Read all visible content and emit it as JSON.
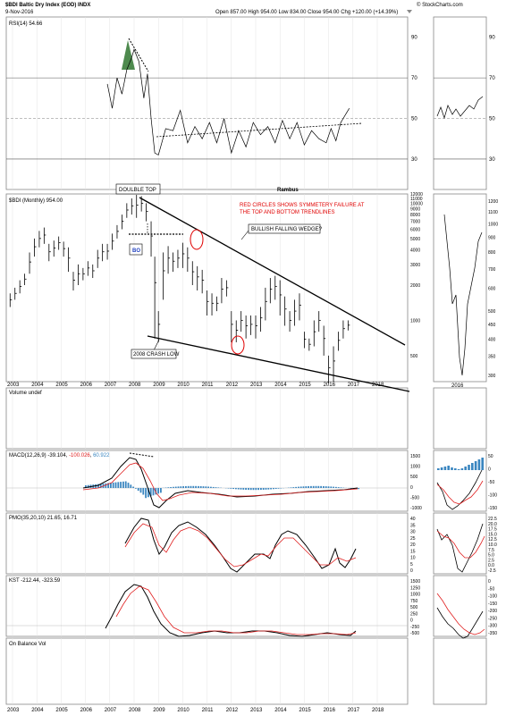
{
  "header": {
    "symbol": "$BDI",
    "name": "Baltic Dry Index (EOD)",
    "exchange": "INDX",
    "date": "9-Nov-2016",
    "brand": "© StockCharts.com",
    "quote": {
      "open_label": "Open",
      "open": "857.00",
      "high_label": "High",
      "high": "954.00",
      "low_label": "Low",
      "low": "834.00",
      "close_label": "Close",
      "close": "954.00",
      "chg_label": "Chg",
      "chg": "+120.00 (+14.39%)"
    }
  },
  "chart_data": [
    {
      "type": "line",
      "panel": "rsi",
      "legend": "RSI(14) 54.66",
      "ylim": [
        15,
        100
      ],
      "yticks": [
        30,
        50,
        70,
        90
      ],
      "reference_lines": [
        30,
        50,
        70
      ],
      "series": [
        {
          "x": [
            2006.9,
            2007.1,
            2007.3,
            2007.5,
            2007.7,
            2007.9,
            2008.0,
            2008.2,
            2008.4,
            2008.55,
            2008.7,
            2008.85,
            2009.0,
            2009.3,
            2009.6,
            2009.9,
            2010.2,
            2010.5,
            2010.8,
            2011.1,
            2011.4,
            2011.7,
            2012.0,
            2012.3,
            2012.6,
            2012.9,
            2013.2,
            2013.5,
            2013.8,
            2014.1,
            2014.4,
            2014.7,
            2015.0,
            2015.3,
            2015.6,
            2015.9,
            2016.1,
            2016.3,
            2016.5,
            2016.7,
            2016.85
          ],
          "y": [
            67,
            55,
            70,
            62,
            74,
            80,
            84,
            78,
            60,
            72,
            50,
            33,
            32,
            45,
            44,
            54,
            38,
            46,
            40,
            48,
            38,
            50,
            33,
            44,
            36,
            48,
            42,
            46,
            38,
            49,
            40,
            48,
            37,
            44,
            40,
            38,
            45,
            39,
            48,
            52,
            55
          ]
        }
      ],
      "annotations": [
        "dashed falling line on RSI peaks 2008",
        "dashed rising support line 2009–2016",
        "green shaded overbought area 2008"
      ]
    },
    {
      "type": "bar",
      "panel": "price",
      "legend": "$BDI (Monthly) 954.00",
      "scale": "log",
      "ylim": [
        300,
        12000
      ],
      "yticks": [
        300,
        400,
        500,
        600,
        700,
        800,
        900,
        1000,
        2000,
        3000,
        4000,
        5000,
        6000,
        7000,
        8000,
        9000,
        10000,
        11000,
        12000
      ],
      "ytick_labels": [
        "500",
        "1000",
        "2000",
        "3000",
        "4000",
        "5000",
        "6000",
        "7000",
        "8000",
        "9000",
        "10000",
        "11000",
        "12000"
      ],
      "x": [
        2002.9,
        2003.1,
        2003.3,
        2003.5,
        2003.7,
        2003.9,
        2004.1,
        2004.3,
        2004.5,
        2004.7,
        2004.9,
        2005.1,
        2005.3,
        2005.5,
        2005.7,
        2005.9,
        2006.1,
        2006.3,
        2006.5,
        2006.7,
        2006.9,
        2007.1,
        2007.3,
        2007.5,
        2007.7,
        2007.9,
        2008.1,
        2008.3,
        2008.5,
        2008.7,
        2008.85,
        2009.0,
        2009.2,
        2009.4,
        2009.6,
        2009.8,
        2010.0,
        2010.2,
        2010.4,
        2010.6,
        2010.8,
        2011.0,
        2011.2,
        2011.4,
        2011.6,
        2011.8,
        2012.0,
        2012.2,
        2012.4,
        2012.6,
        2012.8,
        2013.0,
        2013.2,
        2013.4,
        2013.6,
        2013.8,
        2014.0,
        2014.2,
        2014.4,
        2014.6,
        2014.8,
        2015.0,
        2015.2,
        2015.4,
        2015.6,
        2015.8,
        2016.0,
        2016.2,
        2016.4,
        2016.6,
        2016.8
      ],
      "high": [
        1700,
        1900,
        2200,
        2500,
        3800,
        5000,
        5800,
        6200,
        4500,
        4800,
        5200,
        4700,
        4200,
        2600,
        3000,
        2800,
        3200,
        3000,
        4000,
        4500,
        4500,
        5500,
        6500,
        8000,
        10000,
        11000,
        11800,
        11500,
        10000,
        7000,
        3500,
        1200,
        3800,
        4300,
        3800,
        4000,
        4600,
        4200,
        3200,
        2900,
        2700,
        1800,
        1700,
        1600,
        2300,
        2200,
        1200,
        1000,
        1200,
        1100,
        1100,
        1100,
        1300,
        1900,
        2300,
        2400,
        2200,
        1600,
        1200,
        1500,
        1700,
        800,
        700,
        1000,
        1200,
        900,
        500,
        600,
        800,
        1000,
        1000
      ],
      "low": [
        1300,
        1500,
        1700,
        2000,
        2500,
        3500,
        4200,
        4500,
        3200,
        3500,
        4000,
        3500,
        2600,
        1800,
        2000,
        2200,
        2400,
        2300,
        2800,
        3200,
        3300,
        4000,
        5000,
        6000,
        7500,
        8000,
        7500,
        8500,
        7000,
        3500,
        700,
        650,
        1500,
        2500,
        2600,
        2800,
        2800,
        2600,
        2000,
        1800,
        1700,
        1100,
        1100,
        1200,
        1400,
        1600,
        650,
        650,
        800,
        700,
        750,
        700,
        800,
        1000,
        1400,
        1500,
        1100,
        900,
        800,
        900,
        1000,
        580,
        550,
        600,
        800,
        500,
        290,
        300,
        550,
        700,
        820
      ]
    },
    {
      "type": "line",
      "panel": "price-inset",
      "x_label": "2016",
      "yticks": [
        300,
        350,
        400,
        450,
        500,
        600,
        700,
        800,
        900,
        1000,
        1100,
        1200
      ],
      "ytick_labels": [
        "300",
        "350",
        "400",
        "450",
        "500",
        "600",
        "700",
        "800",
        "900",
        "1000",
        "1100",
        "1200"
      ]
    },
    {
      "type": "bar",
      "panel": "volume",
      "legend": "Volume undef"
    },
    {
      "type": "bar",
      "panel": "macd",
      "legend": "MACD(12,26,9)",
      "legend_vals": [
        "-39.104",
        "-100.026",
        "60.922"
      ],
      "ylim": [
        -2000,
        2000
      ],
      "yticks": [
        -1000,
        -500,
        0,
        500,
        1000,
        1500
      ],
      "ytick_labels": [
        "-1000",
        "-500",
        "0",
        "500",
        "1000",
        "1500"
      ],
      "inset_ytick_labels": [
        "-150",
        "-100",
        "-50",
        "0",
        "50"
      ]
    },
    {
      "type": "line",
      "panel": "pmo",
      "legend": "PMO(35,20,10) 21.65, 16.71",
      "ylim": [
        -5,
        45
      ],
      "yticks": [
        0,
        5,
        10,
        15,
        20,
        25,
        30,
        35,
        40
      ],
      "ytick_labels": [
        "40",
        "35",
        "30",
        "25",
        "20",
        "15",
        "10",
        "5",
        "0"
      ],
      "inset_ytick_labels": [
        "22.5",
        "20.0",
        "17.5",
        "15.0",
        "12.5",
        "10.0",
        "7.5",
        "5.0",
        "2.5",
        "0.0",
        "-2.5"
      ]
    },
    {
      "type": "line",
      "panel": "kst",
      "legend": "KST -212.44, -323.59",
      "ylim": [
        -600,
        1700
      ],
      "yticks": [
        -500,
        -250,
        0,
        250,
        500,
        750,
        1000,
        1250,
        1500
      ],
      "ytick_labels": [
        "1500",
        "1250",
        "1000",
        "750",
        "500",
        "250",
        "0",
        "-250",
        "-500"
      ],
      "inset_ytick_labels": [
        "0",
        "-50",
        "-100",
        "-150",
        "-200",
        "-250",
        "-300",
        "-350"
      ]
    },
    {
      "type": "line",
      "panel": "obv",
      "legend": "On Balance Vol"
    }
  ],
  "xaxis": {
    "years": [
      "2003",
      "2004",
      "2005",
      "2006",
      "2007",
      "2008",
      "2009",
      "2010",
      "2011",
      "2012",
      "2013",
      "2014",
      "2015",
      "2016",
      "2017",
      "2018"
    ]
  },
  "annotations": {
    "double_top": "DOULBLE TOP",
    "rambus": "Rambus",
    "red_note_1": "RED CIRCLES SHOWS SYMMETERY FAILURE AT",
    "red_note_2": "THE TOP AND BOTTOM TRENDLINES",
    "bullish": "BULLISH FALLING WEDGE?",
    "bo": "BO",
    "crash": "2008 CRASH LOW"
  },
  "colors": {
    "rsi_fill": "#4e8a4e",
    "macd_hist": "#3a86c0",
    "signal": "#e02020",
    "note_red": "#e00000",
    "bo_blue": "#1f3fbf",
    "grid": "#e4e4e4"
  }
}
